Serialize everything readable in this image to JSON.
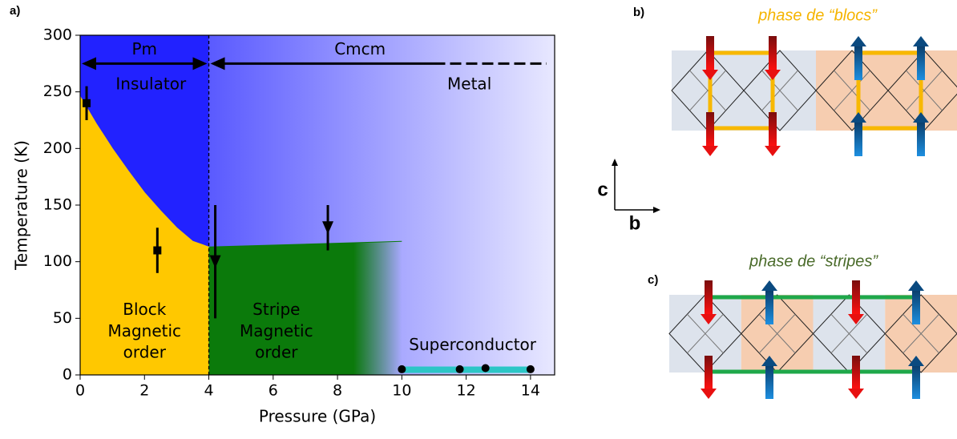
{
  "chart_data": {
    "type": "phase-diagram",
    "panel_label": "a)",
    "x_label": "Pressure (GPa)",
    "y_label": "Temperature (K)",
    "xlim": [
      0,
      14.75
    ],
    "ylim": [
      0,
      300
    ],
    "xticks": [
      0,
      2,
      4,
      6,
      8,
      10,
      12,
      14
    ],
    "yticks": [
      0,
      50,
      100,
      150,
      200,
      250,
      300
    ],
    "structural_transition": 4,
    "block_boundary": {
      "x": [
        0,
        0.5,
        1,
        1.5,
        2,
        2.5,
        3,
        3.5,
        4
      ],
      "y": [
        246,
        222,
        200,
        180,
        161,
        145,
        130,
        118,
        113
      ]
    },
    "stripe_boundary": {
      "x": [
        4,
        10
      ],
      "y": [
        113,
        118
      ]
    },
    "points": {
      "x": [
        0.2,
        2.4,
        4.2,
        7.7
      ],
      "y": [
        240,
        110,
        100,
        130
      ],
      "error": [
        15,
        20,
        50,
        20
      ],
      "markers": [
        "square",
        "square",
        "triangle",
        "triangle"
      ]
    },
    "superconductor_points": {
      "x": [
        10,
        11.8,
        12.6,
        14
      ],
      "y": [
        5,
        5,
        6,
        5
      ]
    },
    "annotations": {
      "pm": "Pm",
      "cmcm": "Cmcm",
      "insulator": "Insulator",
      "metal": "Metal",
      "block": [
        "Block",
        "Magnetic",
        "order"
      ],
      "stripe": [
        "Stripe",
        "Magnetic",
        "order"
      ],
      "superconductor": "Superconductor"
    },
    "colors": {
      "insulator": "#2222ff",
      "metal": "#e8e8ff",
      "block": "#ffc800",
      "stripe": "#0b7a0b",
      "superconductor": "#2cc6c6"
    }
  },
  "panels": [
    {
      "label": "b)",
      "title": "phase de “blocs”"
    },
    {
      "label": "c)",
      "title": "phase de “stripes”"
    }
  ],
  "axes_labels": {
    "vertical": "c",
    "horizontal": "b"
  }
}
